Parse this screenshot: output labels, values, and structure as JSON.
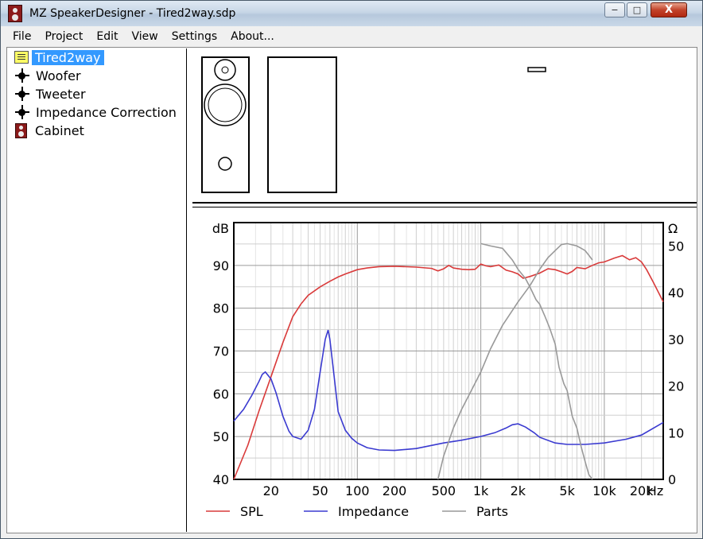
{
  "window": {
    "title": "MZ SpeakerDesigner - Tired2way.sdp",
    "min_label": "−",
    "max_label": "□",
    "close_label": "X"
  },
  "menu": [
    "File",
    "Project",
    "Edit",
    "View",
    "Settings",
    "About..."
  ],
  "tree": [
    {
      "label": "Tired2way",
      "icon": "project-icon",
      "selected": true
    },
    {
      "label": "Woofer",
      "icon": "driver-icon",
      "selected": false
    },
    {
      "label": "Tweeter",
      "icon": "driver-icon",
      "selected": false
    },
    {
      "label": "Impedance Correction",
      "icon": "driver-icon",
      "selected": false
    },
    {
      "label": "Cabinet",
      "icon": "cabinet-icon",
      "selected": false
    }
  ],
  "chart_data": {
    "type": "line",
    "x_scale": "log",
    "xlim": [
      10,
      30000
    ],
    "ylim_left": [
      40,
      100
    ],
    "ylim_right": [
      0,
      55
    ],
    "left_unit": "dB",
    "right_unit": "Ω",
    "x_ticks": [
      {
        "v": 20,
        "t": "20"
      },
      {
        "v": 50,
        "t": "50"
      },
      {
        "v": 100,
        "t": "100"
      },
      {
        "v": 200,
        "t": "200"
      },
      {
        "v": 500,
        "t": "500"
      },
      {
        "v": 1000,
        "t": "1k"
      },
      {
        "v": 2000,
        "t": "2k"
      },
      {
        "v": 5000,
        "t": "5k"
      },
      {
        "v": 10000,
        "t": "10k"
      },
      {
        "v": 20000,
        "t": "20k"
      }
    ],
    "x_unit_label": "Hz",
    "y_left_ticks": [
      40,
      50,
      60,
      70,
      80,
      90
    ],
    "y_right_ticks": [
      0,
      10,
      20,
      30,
      40,
      50
    ],
    "grid": true,
    "legend_position": "bottom",
    "series": [
      {
        "name": "SPL",
        "axis": "left",
        "color": "#d93a3a",
        "x": [
          10,
          13,
          16,
          20,
          25,
          30,
          35,
          40,
          50,
          60,
          70,
          80,
          100,
          120,
          150,
          200,
          300,
          400,
          450,
          500,
          550,
          600,
          700,
          800,
          900,
          1000,
          1100,
          1200,
          1400,
          1600,
          1800,
          2000,
          2200,
          2500,
          3000,
          3500,
          4000,
          4500,
          5000,
          5500,
          6000,
          7000,
          8000,
          9000,
          10000,
          12000,
          14000,
          16000,
          18000,
          20000,
          22000,
          25000,
          30000
        ],
        "y": [
          40,
          48,
          56,
          64,
          72,
          78,
          81,
          83,
          85,
          86.3,
          87.3,
          88,
          89,
          89.4,
          89.7,
          89.8,
          89.6,
          89.3,
          88.7,
          89.2,
          90,
          89.4,
          89.1,
          89.0,
          89.1,
          90.3,
          89.9,
          89.7,
          90.1,
          88.9,
          88.5,
          88.0,
          87.0,
          87.4,
          88.2,
          89.2,
          89.0,
          88.5,
          88.0,
          88.6,
          89.5,
          89.2,
          90.0,
          90.6,
          90.8,
          91.7,
          92.3,
          91.3,
          91.8,
          90.8,
          89.0,
          86.0,
          81.5
        ]
      },
      {
        "name": "Impedance",
        "axis": "right",
        "color": "#3a3ad0",
        "x": [
          10,
          12,
          14,
          16,
          17,
          18,
          20,
          22,
          25,
          28,
          30,
          35,
          40,
          45,
          50,
          55,
          58,
          60,
          65,
          70,
          80,
          90,
          100,
          120,
          150,
          200,
          300,
          500,
          700,
          1000,
          1300,
          1600,
          1800,
          2000,
          2300,
          2700,
          3000,
          4000,
          5000,
          7000,
          10000,
          15000,
          20000,
          30000
        ],
        "y": [
          12.5,
          15,
          18,
          21,
          22.5,
          23,
          21.5,
          18.5,
          13.5,
          10.3,
          9.2,
          8.6,
          10.5,
          15,
          23,
          30,
          32,
          30,
          22,
          14.5,
          10.5,
          8.8,
          7.8,
          6.8,
          6.3,
          6.2,
          6.6,
          7.8,
          8.4,
          9.2,
          10.0,
          11.0,
          11.7,
          11.9,
          11.2,
          10.0,
          9.0,
          7.8,
          7.5,
          7.5,
          7.8,
          8.6,
          9.5,
          12.2
        ]
      },
      {
        "name": "Parts",
        "axis": "right",
        "color": "#999999",
        "x": [
          450,
          500,
          600,
          700,
          800,
          1000,
          1200,
          1500,
          2000,
          2500,
          3000,
          3500,
          4000,
          4500,
          5000,
          6000,
          6500,
          7000,
          7500,
          8000
        ],
        "y": [
          0,
          5,
          11,
          15,
          18,
          23,
          28,
          33,
          38,
          41.5,
          45,
          47.5,
          49,
          50.3,
          50.5,
          50,
          49.5,
          49,
          48,
          47
        ]
      },
      {
        "name": "Parts",
        "axis": "right",
        "color": "#999999",
        "legend": false,
        "x": [
          1000,
          1200,
          1500,
          1800,
          2000,
          2300,
          2500,
          2800,
          3000,
          3300,
          3600,
          4000,
          4300,
          4700,
          5000,
          5500,
          6000,
          6500,
          7000,
          7500,
          8000
        ],
        "y": [
          50.5,
          50,
          49.5,
          47,
          45,
          43,
          41.2,
          38.5,
          37.5,
          35,
          32.5,
          29,
          24,
          20.5,
          19,
          13.5,
          11,
          7,
          3.8,
          1,
          0
        ]
      }
    ]
  }
}
